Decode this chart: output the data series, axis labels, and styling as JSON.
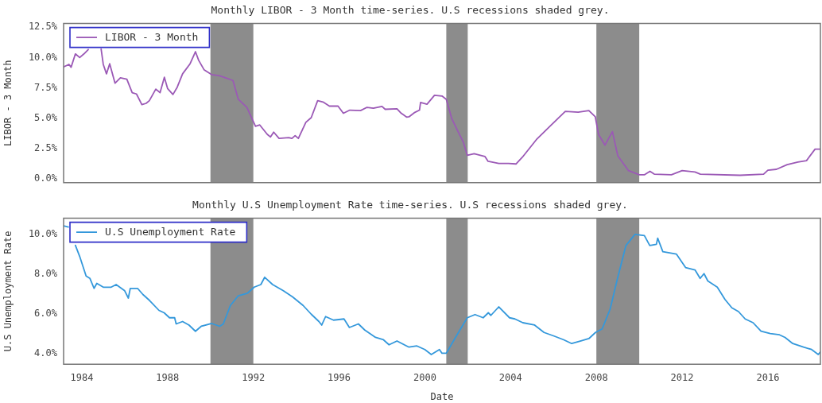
{
  "chart_data": [
    {
      "type": "line",
      "title": "Monthly LIBOR - 3 Month time-series. U.S recessions shaded grey.",
      "ylabel": "LIBOR - 3 Month",
      "legend": "top left",
      "marker": "none",
      "line_style": "solid",
      "tick_labels": "y",
      "xlim": [
        1983.15,
        2018.45
      ],
      "ylim": [
        -0.3,
        12.8
      ],
      "yticks": [
        {
          "value": 0,
          "label": "0.0%"
        },
        {
          "value": 2.5,
          "label": "2.5%"
        },
        {
          "value": 5,
          "label": "5.0%"
        },
        {
          "value": 7.5,
          "label": "7.5%"
        },
        {
          "value": 10,
          "label": "10.0%"
        },
        {
          "value": 12.5,
          "label": "12.5%"
        }
      ],
      "bands": [
        {
          "axis": "x",
          "from": 1990,
          "to": 1992,
          "color": "#8c8c8c"
        },
        {
          "axis": "x",
          "from": 2001,
          "to": 2002,
          "color": "#8c8c8c"
        },
        {
          "axis": "x",
          "from": 2008,
          "to": 2010,
          "color": "#8c8c8c"
        }
      ],
      "x": [
        1983.15,
        1983.4,
        1983.5,
        1983.7,
        1983.9,
        1984.1,
        1984.3,
        1984.6,
        1984.9,
        1985.0,
        1985.15,
        1985.3,
        1985.55,
        1985.8,
        1986.1,
        1986.35,
        1986.55,
        1986.8,
        1987.0,
        1987.15,
        1987.45,
        1987.65,
        1987.85,
        1988.0,
        1988.25,
        1988.45,
        1988.7,
        1989.05,
        1989.3,
        1989.45,
        1989.7,
        1990.05,
        1990.4,
        1990.7,
        1991.05,
        1991.3,
        1991.7,
        1992.1,
        1992.3,
        1992.65,
        1992.8,
        1992.95,
        1993.2,
        1993.65,
        1993.8,
        1993.95,
        1994.1,
        1994.45,
        1994.7,
        1995.0,
        1995.25,
        1995.55,
        1995.95,
        1996.2,
        1996.5,
        1997.0,
        1997.3,
        1997.6,
        1998.0,
        1998.15,
        1998.7,
        1998.9,
        1999.15,
        1999.26,
        1999.5,
        1999.75,
        1999.8,
        2000.1,
        2000.45,
        2000.8,
        2001.0,
        2001.25,
        2001.55,
        2001.8,
        2001.98,
        2002.3,
        2002.8,
        2002.95,
        2003.45,
        2003.9,
        2004.25,
        2004.55,
        2005.2,
        2005.9,
        2006.55,
        2007.15,
        2007.65,
        2007.95,
        2008.1,
        2008.4,
        2008.75,
        2009.0,
        2009.5,
        2010.0,
        2010.25,
        2010.5,
        2010.7,
        2011.5,
        2012.0,
        2012.6,
        2012.85,
        2014.7,
        2015.8,
        2016.0,
        2016.4,
        2016.9,
        2017.4,
        2017.8,
        2018.2,
        2018.45
      ],
      "series": [
        {
          "name": "LIBOR - 3 Month",
          "color": "#9b59b6",
          "values": [
            9.22,
            9.44,
            9.2,
            10.3,
            10.0,
            10.3,
            10.66,
            null,
            10.7,
            9.44,
            8.66,
            9.49,
            7.89,
            8.33,
            8.22,
            7.11,
            7.0,
            6.12,
            6.23,
            6.45,
            7.4,
            7.11,
            8.38,
            7.45,
            6.96,
            7.56,
            8.66,
            9.49,
            10.48,
            9.77,
            9.0,
            8.6,
            8.51,
            8.33,
            8.11,
            6.56,
            5.9,
            4.34,
            4.45,
            3.68,
            3.46,
            3.86,
            3.34,
            3.41,
            3.34,
            3.57,
            3.34,
            4.67,
            5.05,
            6.45,
            6.34,
            6.0,
            6.0,
            5.41,
            5.67,
            5.63,
            5.9,
            5.83,
            5.98,
            5.74,
            5.78,
            5.41,
            5.1,
            5.12,
            5.45,
            5.67,
            6.3,
            6.16,
            6.89,
            6.83,
            6.56,
            5.0,
            3.9,
            3.01,
            1.95,
            2.08,
            1.86,
            1.46,
            1.28,
            1.28,
            1.24,
            1.8,
            3.24,
            4.45,
            5.57,
            5.5,
            5.63,
            5.12,
            3.68,
            2.79,
            3.9,
            1.91,
            0.69,
            0.35,
            0.35,
            0.64,
            0.4,
            0.35,
            0.69,
            0.58,
            0.4,
            0.31,
            0.4,
            0.73,
            0.8,
            1.18,
            1.4,
            1.51,
            2.46,
            2.46
          ]
        }
      ]
    },
    {
      "type": "line",
      "title": "Monthly U.S Unemployment Rate time-series. U.S recessions shaded grey.",
      "xlabel": "Date",
      "ylabel": "U.S Unemployment Rate",
      "legend": "top left",
      "marker": "none",
      "line_style": "solid",
      "xlim": [
        1983.15,
        2018.45
      ],
      "ylim": [
        3.45,
        10.8
      ],
      "xticks": [
        1984,
        1988,
        1992,
        1996,
        2000,
        2004,
        2008,
        2012,
        2016
      ],
      "yticks": [
        {
          "value": 4,
          "label": "4.0%"
        },
        {
          "value": 6,
          "label": "6.0%"
        },
        {
          "value": 8,
          "label": "8.0%"
        },
        {
          "value": 10,
          "label": "10.0%"
        }
      ],
      "bands": [
        {
          "axis": "x",
          "from": 1990,
          "to": 1992,
          "color": "#8c8c8c"
        },
        {
          "axis": "x",
          "from": 2001,
          "to": 2002,
          "color": "#8c8c8c"
        },
        {
          "axis": "x",
          "from": 2008,
          "to": 2010,
          "color": "#8c8c8c"
        }
      ],
      "x": [
        1983.15,
        1983.37,
        1983.5,
        1983.7,
        1983.9,
        1984.2,
        1984.38,
        1984.57,
        1984.7,
        1985.0,
        1985.37,
        1985.6,
        1986.0,
        1986.17,
        1986.26,
        1986.6,
        1986.85,
        1987.16,
        1987.6,
        1987.84,
        1988.09,
        1988.33,
        1988.4,
        1988.7,
        1989.0,
        1989.3,
        1989.57,
        1990.06,
        1990.43,
        1990.6,
        1990.93,
        1991.3,
        1991.73,
        1992.04,
        1992.35,
        1992.53,
        1992.9,
        1993.4,
        1993.83,
        1994.32,
        1994.7,
        1995.06,
        1995.19,
        1995.37,
        1995.74,
        1996.23,
        1996.48,
        1996.9,
        1997.2,
        1997.7,
        1998.07,
        1998.33,
        1998.7,
        1999.26,
        1999.63,
        2000.0,
        2000.3,
        2000.68,
        2000.8,
        2001.0,
        2001.23,
        2001.6,
        2001.98,
        2002.34,
        2002.72,
        2002.96,
        2003.08,
        2003.45,
        2003.95,
        2004.2,
        2004.57,
        2005.12,
        2005.56,
        2006.05,
        2006.48,
        2006.85,
        2007.28,
        2007.65,
        2007.96,
        2008.27,
        2008.64,
        2009.0,
        2009.38,
        2009.8,
        2010.24,
        2010.49,
        2010.8,
        2010.86,
        2011.1,
        2011.73,
        2012.16,
        2012.6,
        2012.84,
        2013.02,
        2013.2,
        2013.64,
        2014.0,
        2014.32,
        2014.63,
        2014.94,
        2015.31,
        2015.68,
        2016.11,
        2016.54,
        2016.8,
        2017.16,
        2017.66,
        2018.04,
        2018.35,
        2018.44
      ],
      "series": [
        {
          "name": "U.S Unemployment Rate",
          "color": "#3498db",
          "values": [
            10.42,
            10.36,
            null,
            9.44,
            8.88,
            7.89,
            7.77,
            7.27,
            7.52,
            7.33,
            7.33,
            7.46,
            7.15,
            6.78,
            7.27,
            7.27,
            6.96,
            6.66,
            6.16,
            6.04,
            5.79,
            5.79,
            5.48,
            5.6,
            5.42,
            5.11,
            5.36,
            5.5,
            5.36,
            5.48,
            6.41,
            6.9,
            7.03,
            7.33,
            7.46,
            7.83,
            7.46,
            7.15,
            6.84,
            6.41,
            5.97,
            5.6,
            5.42,
            5.85,
            5.67,
            5.73,
            5.3,
            5.48,
            5.17,
            4.8,
            4.68,
            4.43,
            4.62,
            4.31,
            4.37,
            4.19,
            3.94,
            4.19,
            4.0,
            4.0,
            4.43,
            5.11,
            5.79,
            5.95,
            5.79,
            6.04,
            5.91,
            6.34,
            5.79,
            5.73,
            5.54,
            5.42,
            5.05,
            4.86,
            4.68,
            4.49,
            4.62,
            4.74,
            5.05,
            5.23,
            6.22,
            7.83,
            9.43,
            9.99,
            9.93,
            9.43,
            9.49,
            9.8,
            9.12,
            9.0,
            8.32,
            8.2,
            7.77,
            8.01,
            7.64,
            7.33,
            6.71,
            6.29,
            6.1,
            5.73,
            5.54,
            5.11,
            4.99,
            4.93,
            4.8,
            4.49,
            4.31,
            4.19,
            3.94,
            4.06
          ]
        }
      ]
    }
  ]
}
